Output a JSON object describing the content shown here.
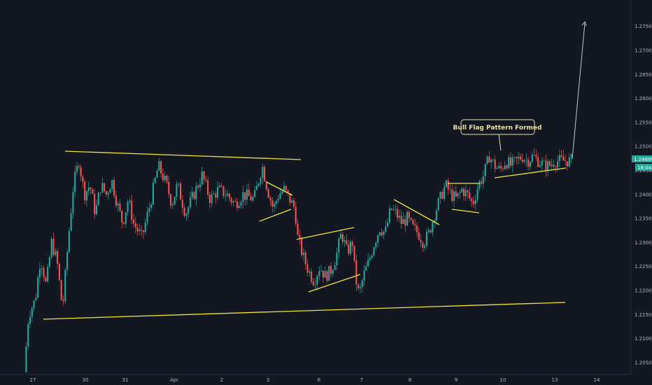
{
  "chart_data": {
    "type": "candlestick",
    "title": "",
    "xlabel": "",
    "ylabel": "",
    "ylim": [
      1.2025,
      1.2805
    ],
    "y_ticks": [
      "1.27500",
      "1.27000",
      "1.26500",
      "1.26000",
      "1.25500",
      "1.25000",
      "1.24500",
      "1.24000",
      "1.23500",
      "1.23000",
      "1.22500",
      "1.22000",
      "1.21500",
      "1.21000",
      "1.20500"
    ],
    "x_ticks": [
      "27",
      "30",
      "31",
      "Apr",
      "2",
      "3",
      "6",
      "7",
      "8",
      "9",
      "10",
      "13",
      "14"
    ],
    "grid": false,
    "last_price_label": "1.24699",
    "countdown_label": "18:04",
    "annotation": "Bull Flag Pattern Formed",
    "colors": {
      "background": "#131722",
      "up": "#26a69a",
      "down": "#ef5350",
      "trendline": "#f0e43a",
      "axis_text": "#b2b5be",
      "badge": "#26a69a"
    },
    "price_path": [
      [
        0,
        1.203
      ],
      [
        0.008,
        1.215
      ],
      [
        0.02,
        1.218
      ],
      [
        0.03,
        1.227
      ],
      [
        0.04,
        1.221
      ],
      [
        0.05,
        1.23
      ],
      [
        0.06,
        1.226
      ],
      [
        0.07,
        1.216
      ],
      [
        0.08,
        1.23
      ],
      [
        0.09,
        1.242
      ],
      [
        0.1,
        1.247
      ],
      [
        0.11,
        1.24
      ],
      [
        0.12,
        1.242
      ],
      [
        0.13,
        1.236
      ],
      [
        0.14,
        1.242
      ],
      [
        0.15,
        1.24
      ],
      [
        0.16,
        1.243
      ],
      [
        0.17,
        1.238
      ],
      [
        0.18,
        1.234
      ],
      [
        0.19,
        1.239
      ],
      [
        0.2,
        1.234
      ],
      [
        0.215,
        1.231
      ],
      [
        0.23,
        1.238
      ],
      [
        0.245,
        1.246
      ],
      [
        0.26,
        1.242
      ],
      [
        0.27,
        1.238
      ],
      [
        0.28,
        1.242
      ],
      [
        0.295,
        1.236
      ],
      [
        0.31,
        1.24
      ],
      [
        0.325,
        1.244
      ],
      [
        0.34,
        1.239
      ],
      [
        0.355,
        1.241
      ],
      [
        0.37,
        1.24
      ],
      [
        0.385,
        1.238
      ],
      [
        0.4,
        1.24
      ],
      [
        0.42,
        1.239
      ],
      [
        0.435,
        1.246
      ],
      [
        0.445,
        1.241
      ],
      [
        0.455,
        1.237
      ],
      [
        0.465,
        1.24
      ],
      [
        0.475,
        1.241
      ],
      [
        0.485,
        1.239
      ],
      [
        0.495,
        1.237
      ],
      [
        0.5,
        1.231
      ],
      [
        0.51,
        1.227
      ],
      [
        0.52,
        1.224
      ],
      [
        0.53,
        1.222
      ],
      [
        0.54,
        1.225
      ],
      [
        0.55,
        1.223
      ],
      [
        0.56,
        1.224
      ],
      [
        0.57,
        1.227
      ],
      [
        0.58,
        1.232
      ],
      [
        0.59,
        1.228
      ],
      [
        0.6,
        1.23
      ],
      [
        0.605,
        1.223
      ],
      [
        0.612,
        1.219
      ],
      [
        0.62,
        1.223
      ],
      [
        0.63,
        1.226
      ],
      [
        0.64,
        1.23
      ],
      [
        0.65,
        1.233
      ],
      [
        0.66,
        1.232
      ],
      [
        0.67,
        1.237
      ],
      [
        0.68,
        1.236
      ],
      [
        0.69,
        1.234
      ],
      [
        0.7,
        1.235
      ],
      [
        0.71,
        1.233
      ],
      [
        0.72,
        1.232
      ],
      [
        0.73,
        1.23
      ],
      [
        0.74,
        1.232
      ],
      [
        0.75,
        1.236
      ],
      [
        0.76,
        1.239
      ],
      [
        0.77,
        1.242
      ],
      [
        0.78,
        1.24
      ],
      [
        0.79,
        1.239
      ],
      [
        0.8,
        1.241
      ],
      [
        0.81,
        1.24
      ],
      [
        0.82,
        1.238
      ],
      [
        0.83,
        1.242
      ],
      [
        0.84,
        1.244
      ],
      [
        0.85,
        1.248
      ],
      [
        0.86,
        1.246
      ],
      [
        0.87,
        1.245
      ],
      [
        0.88,
        1.247
      ],
      [
        0.89,
        1.246
      ],
      [
        0.9,
        1.247
      ],
      [
        0.91,
        1.248
      ],
      [
        0.92,
        1.247
      ],
      [
        0.93,
        1.248
      ],
      [
        0.94,
        1.247
      ],
      [
        0.95,
        1.246
      ],
      [
        0.96,
        1.246
      ],
      [
        0.97,
        1.247
      ],
      [
        1.0,
        1.247
      ]
    ]
  }
}
